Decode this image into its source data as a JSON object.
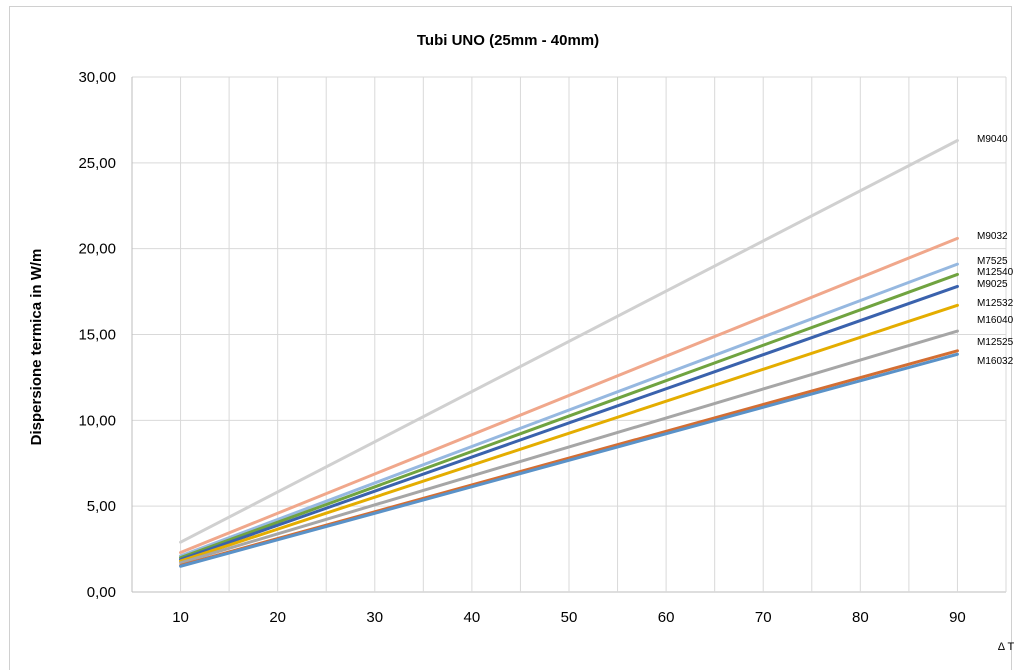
{
  "chart_data": {
    "type": "line",
    "title": "Tubi UNO (25mm - 40mm)",
    "ylabel": "Dispersione termica in W/m",
    "xlabel": "Δ T",
    "x": [
      10,
      90
    ],
    "xlim": [
      5,
      95
    ],
    "xticks": [
      "10",
      "20",
      "30",
      "40",
      "50",
      "60",
      "70",
      "80",
      "90"
    ],
    "ylim": [
      0,
      30
    ],
    "yticks": [
      "0,00",
      "5,00",
      "10,00",
      "15,00",
      "20,00",
      "25,00",
      "30,00"
    ],
    "grid": true,
    "legend": "labels at line ends (right)",
    "series": [
      {
        "name": "M9040",
        "values": [
          2.9,
          26.3
        ],
        "color": "#d0d0d0"
      },
      {
        "name": "M9032",
        "values": [
          2.3,
          20.6
        ],
        "color": "#f0a78b"
      },
      {
        "name": "M7525",
        "values": [
          2.1,
          19.1
        ],
        "color": "#96b8e0"
      },
      {
        "name": "M12540",
        "values": [
          2.0,
          18.5
        ],
        "color": "#70a340"
      },
      {
        "name": "M9025",
        "values": [
          1.9,
          17.8
        ],
        "color": "#3a62ad"
      },
      {
        "name": "M12532",
        "values": [
          1.8,
          16.7
        ],
        "color": "#e4ad00"
      },
      {
        "name": "M16040",
        "values": [
          1.7,
          15.2
        ],
        "color": "#a6a6a6"
      },
      {
        "name": "M12525",
        "values": [
          1.55,
          14.05
        ],
        "color": "#d36e33"
      },
      {
        "name": "M16032",
        "values": [
          1.5,
          13.85
        ],
        "color": "#5a92c8"
      }
    ]
  }
}
